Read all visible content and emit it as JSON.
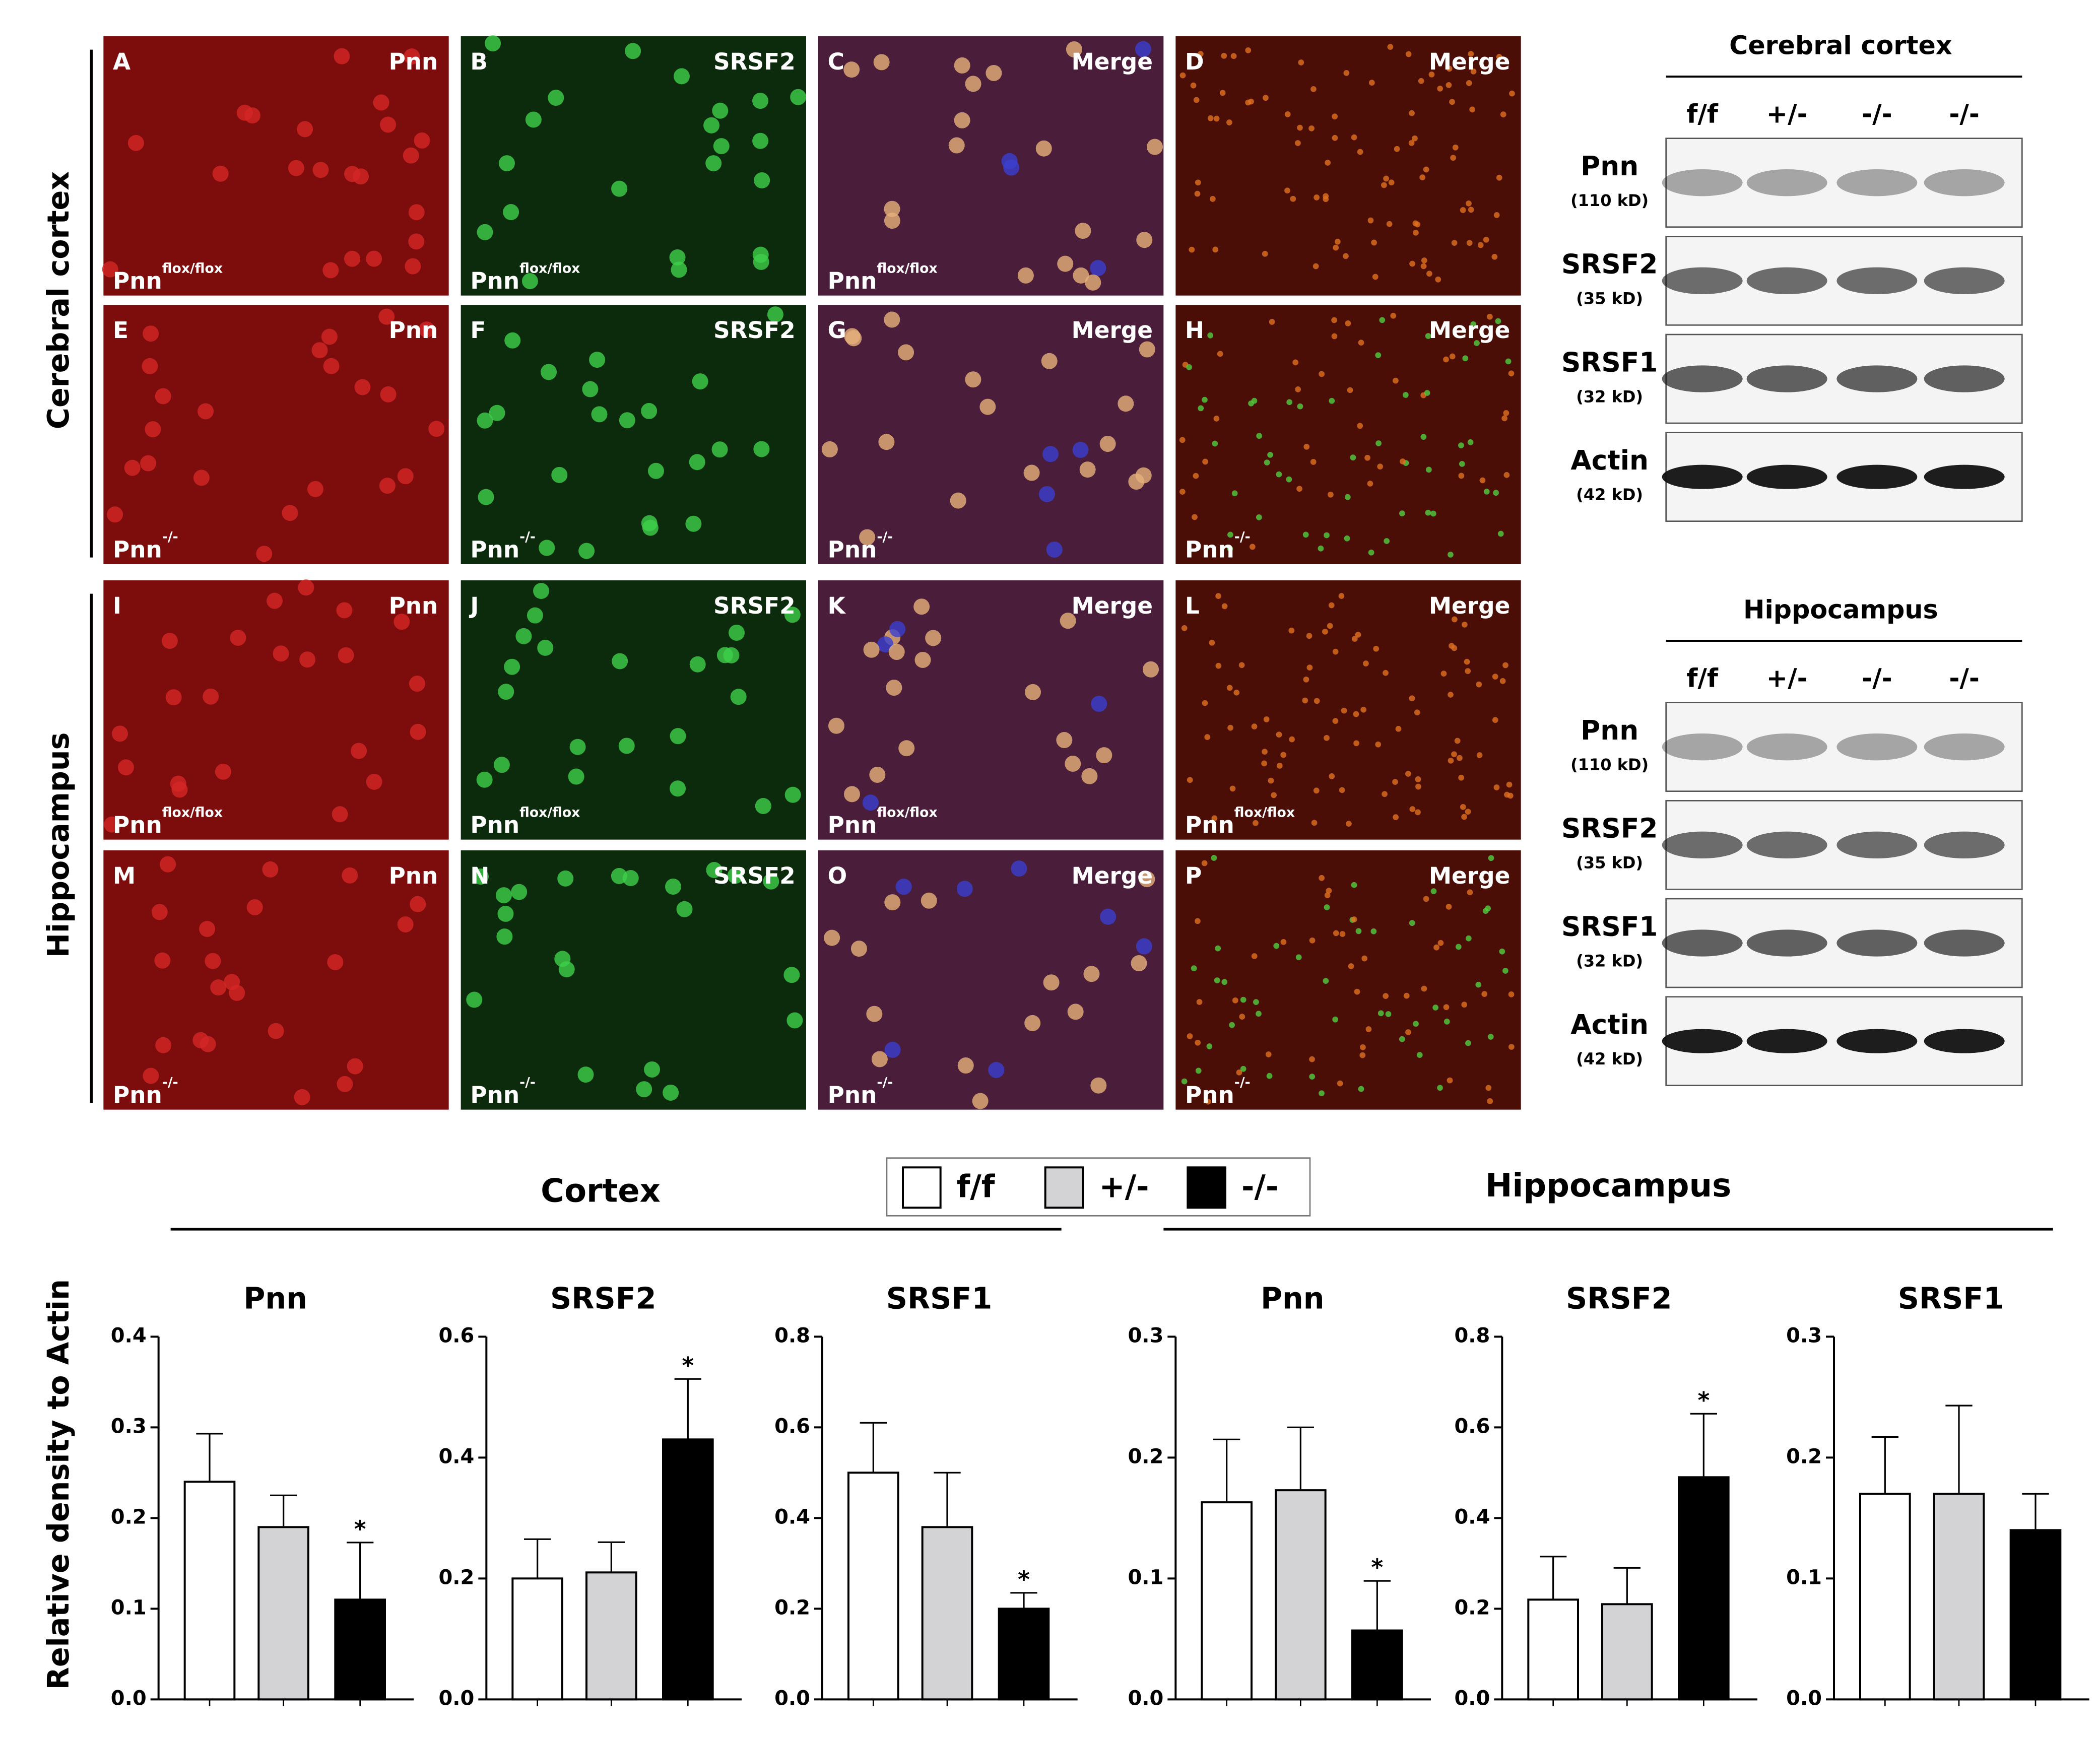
{
  "image_rows": [
    {
      "label": "Cerebral cortex",
      "panels": [
        {
          "letter": "A",
          "stain": "Pnn",
          "genotype": {
            "base": "Pnn",
            "sup": "flox/flox"
          }
        },
        {
          "letter": "B",
          "stain": "SRSF2",
          "genotype": {
            "base": "Pnn",
            "sup": "flox/flox"
          }
        },
        {
          "letter": "C",
          "stain": "Merge",
          "genotype": {
            "base": "Pnn",
            "sup": "flox/flox"
          }
        },
        {
          "letter": "D",
          "stain": "Merge"
        },
        {
          "letter": "E",
          "stain": "Pnn",
          "genotype": {
            "base": "Pnn",
            "sup": "-/-"
          }
        },
        {
          "letter": "F",
          "stain": "SRSF2",
          "genotype": {
            "base": "Pnn",
            "sup": "-/-"
          }
        },
        {
          "letter": "G",
          "stain": "Merge",
          "genotype": {
            "base": "Pnn",
            "sup": "-/-"
          }
        },
        {
          "letter": "H",
          "stain": "Merge",
          "genotype": {
            "base": "Pnn",
            "sup": "-/-"
          }
        }
      ]
    },
    {
      "label": "Hippocampus",
      "panels": [
        {
          "letter": "I",
          "stain": "Pnn",
          "genotype": {
            "base": "Pnn",
            "sup": "flox/flox"
          }
        },
        {
          "letter": "J",
          "stain": "SRSF2",
          "genotype": {
            "base": "Pnn",
            "sup": "flox/flox"
          }
        },
        {
          "letter": "K",
          "stain": "Merge",
          "genotype": {
            "base": "Pnn",
            "sup": "flox/flox"
          }
        },
        {
          "letter": "L",
          "stain": "Merge",
          "genotype": {
            "base": "Pnn",
            "sup": "flox/flox"
          }
        },
        {
          "letter": "M",
          "stain": "Pnn",
          "genotype": {
            "base": "Pnn",
            "sup": "-/-"
          }
        },
        {
          "letter": "N",
          "stain": "SRSF2",
          "genotype": {
            "base": "Pnn",
            "sup": "-/-"
          }
        },
        {
          "letter": "O",
          "stain": "Merge",
          "genotype": {
            "base": "Pnn",
            "sup": "-/-"
          }
        },
        {
          "letter": "P",
          "stain": "Merge",
          "genotype": {
            "base": "Pnn",
            "sup": "-/-"
          }
        }
      ]
    }
  ],
  "blots": [
    {
      "title": "Cerebral cortex",
      "lanes": [
        "f/f",
        "+/-",
        "-/-",
        "-/-"
      ],
      "rows": [
        {
          "name": "Pnn",
          "size": "(110 kD)"
        },
        {
          "name": "SRSF2",
          "size": "(35 kD)"
        },
        {
          "name": "SRSF1",
          "size": "(32 kD)"
        },
        {
          "name": "Actin",
          "size": "(42 kD)"
        }
      ]
    },
    {
      "title": "Hippocampus",
      "lanes": [
        "f/f",
        "+/-",
        "-/-",
        "-/-"
      ],
      "rows": [
        {
          "name": "Pnn",
          "size": "(110 kD)"
        },
        {
          "name": "SRSF2",
          "size": "(35 kD)"
        },
        {
          "name": "SRSF1",
          "size": "(32 kD)"
        },
        {
          "name": "Actin",
          "size": "(42 kD)"
        }
      ]
    }
  ],
  "legend": {
    "names": [
      "f/f",
      "+/-",
      "-/-"
    ],
    "colors": [
      "#ffffff",
      "#d3d3d5",
      "#000000"
    ]
  },
  "group_titles": [
    "Cortex",
    "Hippocampus"
  ],
  "y_axis_label": "Relative density to Actin",
  "chart_data": [
    {
      "type": "bar",
      "title": "Pnn",
      "values": [
        0.24,
        0.19,
        0.11
      ],
      "errors": [
        0.053,
        0.035,
        0.063
      ],
      "significance": [
        null,
        null,
        "*"
      ],
      "ylim": [
        0,
        0.4
      ],
      "yticks": [
        {
          "value": 0,
          "label": "0.0"
        },
        0.1,
        0.2,
        0.3,
        0.4
      ]
    },
    {
      "type": "bar",
      "title": "SRSF2",
      "values": [
        0.2,
        0.21,
        0.43
      ],
      "errors": [
        0.065,
        0.05,
        0.1
      ],
      "significance": [
        null,
        null,
        "*"
      ],
      "ylim": [
        0,
        0.6
      ],
      "yticks": [
        {
          "value": 0,
          "label": "0.0"
        },
        0.2,
        0.4,
        0.6
      ]
    },
    {
      "type": "bar",
      "title": "SRSF1",
      "values": [
        0.5,
        0.38,
        0.2
      ],
      "errors": [
        0.11,
        0.12,
        0.035
      ],
      "significance": [
        null,
        null,
        "*"
      ],
      "ylim": [
        0,
        0.8
      ],
      "yticks": [
        {
          "value": 0,
          "label": "0.0"
        },
        0.2,
        0.4,
        0.6,
        0.8
      ]
    },
    {
      "type": "bar",
      "title": "Pnn",
      "values": [
        0.163,
        0.173,
        0.057
      ],
      "errors": [
        0.052,
        0.052,
        0.041
      ],
      "significance": [
        null,
        null,
        "*"
      ],
      "ylim": [
        0,
        0.3
      ],
      "yticks": [
        {
          "value": 0,
          "label": "0.0"
        },
        0.1,
        0.2,
        0.3
      ]
    },
    {
      "type": "bar",
      "title": "SRSF2",
      "values": [
        0.22,
        0.21,
        0.49
      ],
      "errors": [
        0.095,
        0.08,
        0.14
      ],
      "significance": [
        null,
        null,
        "*"
      ],
      "ylim": [
        0,
        0.8
      ],
      "yticks": [
        {
          "value": 0,
          "label": "0.0"
        },
        0.2,
        0.4,
        0.6,
        0.8
      ]
    },
    {
      "type": "bar",
      "title": "SRSF1",
      "values": [
        0.17,
        0.17,
        0.14
      ],
      "errors": [
        0.047,
        0.073,
        0.03
      ],
      "significance": [
        null,
        null,
        null
      ],
      "ylim": [
        0,
        0.3
      ],
      "yticks": [
        {
          "value": 0,
          "label": "0.0"
        },
        0.1,
        0.2,
        0.3
      ]
    }
  ]
}
